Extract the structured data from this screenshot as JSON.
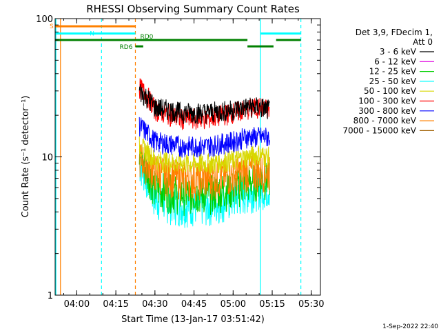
{
  "chart_data": {
    "type": "line",
    "title": "RHESSI Observing Summary Count Rates",
    "xlabel": "Start Time (13-Jan-17 03:51:42)",
    "ylabel": "Count Rate (s⁻¹ detector⁻¹)",
    "y_scale": "log",
    "ylim": [
      1,
      100
    ],
    "xlim": [
      "03:51:42",
      "05:33:30"
    ],
    "x_ticks": [
      "04:00",
      "04:15",
      "04:30",
      "04:45",
      "05:00",
      "05:15",
      "05:30"
    ],
    "y_ticks": [
      "1",
      "10",
      "100"
    ],
    "legend": {
      "placement": "right",
      "header": [
        "Det 3,9, FDecim 1,",
        "Att 0"
      ]
    },
    "series": [
      {
        "name": "3 - 6 keV",
        "color": "#000000",
        "x": [
          "04:24",
          "04:27",
          "04:30",
          "04:40",
          "04:50",
          "05:00",
          "05:05",
          "05:10",
          "05:14"
        ],
        "values": [
          30,
          27,
          23,
          21,
          21,
          22,
          23,
          23,
          22
        ]
      },
      {
        "name": "6 - 12 keV",
        "color": "#e000e0",
        "x": [],
        "values": []
      },
      {
        "name": "12 - 25 keV",
        "color": "#00d000",
        "x": [
          "04:24",
          "04:27",
          "04:30",
          "04:40",
          "04:50",
          "05:00",
          "05:05",
          "05:10",
          "05:14"
        ],
        "values": [
          10,
          8,
          6,
          5.5,
          5.5,
          6,
          6.5,
          7,
          7
        ]
      },
      {
        "name": "25 - 50 keV",
        "color": "#00ffff",
        "x": [
          "04:24",
          "04:27",
          "04:30",
          "04:40",
          "04:50",
          "05:00",
          "05:05",
          "05:10",
          "05:14"
        ],
        "values": [
          9,
          7,
          5,
          4.5,
          4.5,
          5,
          5.5,
          6,
          6
        ]
      },
      {
        "name": "50 - 100 keV",
        "color": "#d8d800",
        "x": [
          "04:24",
          "04:27",
          "04:30",
          "04:40",
          "04:50",
          "05:00",
          "05:05",
          "05:10",
          "05:14"
        ],
        "values": [
          12,
          11,
          9.5,
          9,
          9,
          9.5,
          10,
          10.5,
          10
        ]
      },
      {
        "name": "100 - 300 keV",
        "color": "#ff0000",
        "x": [
          "04:24",
          "04:27",
          "04:30",
          "04:40",
          "04:50",
          "05:00",
          "05:05",
          "05:10",
          "05:14"
        ],
        "values": [
          32,
          28,
          22,
          19,
          19,
          21,
          22,
          23,
          22
        ]
      },
      {
        "name": "300 - 800 keV",
        "color": "#0000ff",
        "x": [
          "04:24",
          "04:27",
          "04:30",
          "04:40",
          "04:50",
          "05:00",
          "05:05",
          "05:10",
          "05:14"
        ],
        "values": [
          17,
          15,
          13,
          12,
          12,
          13,
          14,
          14,
          14
        ]
      },
      {
        "name": "800 - 7000 keV",
        "color": "#ff8000",
        "x": [
          "04:24",
          "04:27",
          "04:30",
          "04:40",
          "04:50",
          "05:00",
          "05:05",
          "05:10",
          "05:14"
        ],
        "values": [
          10,
          9,
          8,
          7,
          7,
          7.5,
          8,
          8,
          8
        ]
      },
      {
        "name": "7000 - 15000 keV",
        "color": "#a06000",
        "x": [],
        "values": []
      }
    ],
    "flags": [
      {
        "label": "S",
        "color": "#ff8000",
        "y": 88,
        "segments": [
          [
            "03:51:42",
            "04:22:30"
          ]
        ]
      },
      {
        "label": "N",
        "color": "#00ffff",
        "y": 78,
        "segments": [
          [
            "03:51:42",
            "04:09:30"
          ],
          [
            "04:09:30",
            "04:22:30"
          ],
          [
            "05:10:30",
            "05:26:00"
          ]
        ]
      },
      {
        "label": "RD0",
        "color": "#008000",
        "y": 70,
        "segments": [
          [
            "03:51:42",
            "04:22:30"
          ],
          [
            "04:22:30",
            "05:05:30"
          ],
          [
            "05:16:30",
            "05:26:00"
          ]
        ]
      },
      {
        "label": "RD6",
        "color": "#008000",
        "y": 63,
        "segments": [
          [
            "04:22:30",
            "04:25:30"
          ],
          [
            "05:05:30",
            "05:15:30"
          ]
        ]
      }
    ],
    "vertical_markers": [
      {
        "time": "03:52:00",
        "color": "#00ffff",
        "style": "solid"
      },
      {
        "time": "03:53:45",
        "color": "#ff8000",
        "style": "solid"
      },
      {
        "time": "04:09:30",
        "color": "#00ffff",
        "style": "dashed"
      },
      {
        "time": "04:22:30",
        "color": "#ff8000",
        "style": "dashed"
      },
      {
        "time": "05:10:30",
        "color": "#00ffff",
        "style": "solid"
      },
      {
        "time": "05:26:00",
        "color": "#00ffff",
        "style": "dashed"
      }
    ],
    "grid": false
  },
  "timestamp": "1-Sep-2022 22:40"
}
